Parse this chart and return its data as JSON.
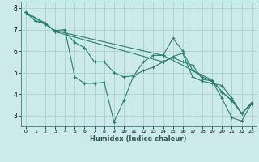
{
  "xlabel": "Humidex (Indice chaleur)",
  "ylabel": "",
  "background_color": "#cdeaea",
  "grid_color": "#a8d0d0",
  "line_color": "#2e7d6e",
  "xlim": [
    -0.5,
    23.5
  ],
  "ylim": [
    2.5,
    8.3
  ],
  "xticks": [
    0,
    1,
    2,
    3,
    4,
    5,
    6,
    7,
    8,
    9,
    10,
    11,
    12,
    13,
    14,
    15,
    16,
    17,
    18,
    19,
    20,
    21,
    22,
    23
  ],
  "yticks": [
    3,
    4,
    5,
    6,
    7,
    8
  ],
  "series": [
    {
      "x": [
        0,
        1,
        2,
        3,
        4,
        5,
        6,
        7,
        8,
        9,
        10,
        11,
        12,
        13,
        14,
        15,
        16,
        17,
        18,
        19,
        20,
        21,
        22,
        23
      ],
      "y": [
        7.8,
        7.4,
        7.3,
        6.9,
        6.9,
        6.4,
        6.15,
        5.5,
        5.5,
        5.0,
        4.8,
        4.85,
        5.1,
        5.25,
        5.5,
        5.7,
        5.5,
        5.35,
        4.7,
        4.6,
        4.1,
        3.7,
        3.1,
        3.6
      ]
    },
    {
      "x": [
        0,
        1,
        2,
        3,
        4,
        5,
        6,
        7,
        8,
        9,
        10,
        11,
        12,
        13,
        14,
        15,
        16,
        17,
        18,
        19,
        20,
        21,
        22,
        23
      ],
      "y": [
        7.8,
        7.4,
        7.25,
        6.95,
        7.0,
        4.8,
        4.5,
        4.5,
        4.55,
        2.7,
        3.7,
        4.85,
        5.5,
        5.8,
        5.8,
        6.6,
        6.0,
        5.1,
        4.8,
        4.6,
        3.8,
        2.9,
        2.75,
        3.55
      ]
    },
    {
      "x": [
        0,
        2,
        3,
        14,
        15,
        16,
        17,
        18,
        19,
        20,
        21,
        22,
        23
      ],
      "y": [
        7.8,
        7.3,
        6.9,
        5.5,
        5.75,
        5.9,
        4.8,
        4.6,
        4.5,
        4.4,
        3.8,
        3.1,
        3.55
      ]
    },
    {
      "x": [
        0,
        2,
        3,
        14,
        19,
        20,
        21,
        22,
        23
      ],
      "y": [
        7.8,
        7.25,
        6.95,
        5.8,
        4.65,
        4.1,
        3.7,
        3.1,
        3.55
      ]
    }
  ]
}
